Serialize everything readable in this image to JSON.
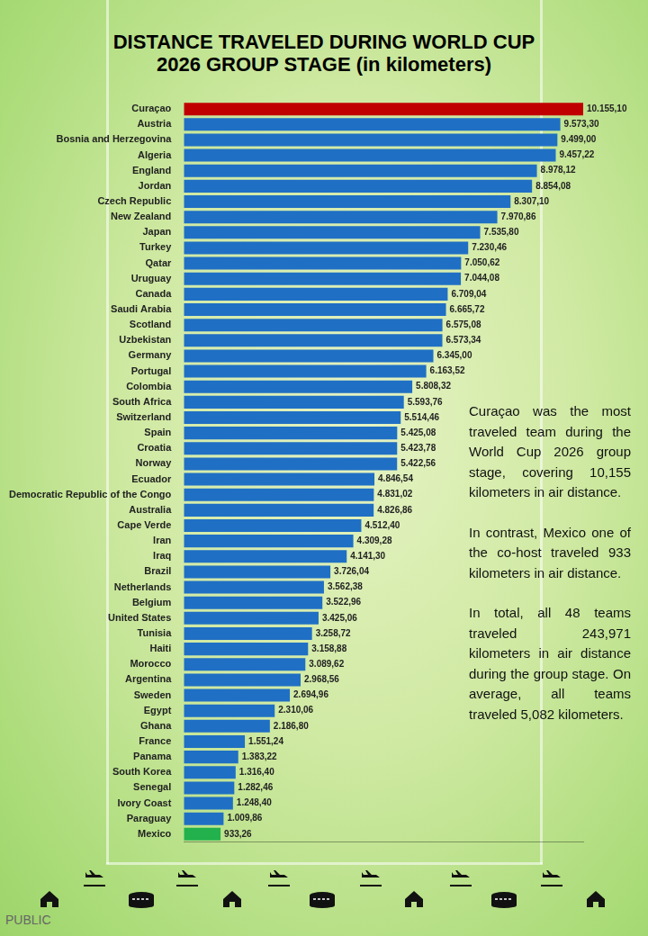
{
  "chart_data": {
    "type": "bar",
    "title": "DISTANCE TRAVELED DURING WORLD CUP 2026 GROUP STAGE (in kilometers)",
    "orientation": "horizontal",
    "categories": [
      "Curaçao",
      "Austria",
      "Bosnia and Herzegovina",
      "Algeria",
      "England",
      "Jordan",
      "Czech Republic",
      "New Zealand",
      "Japan",
      "Turkey",
      "Qatar",
      "Uruguay",
      "Canada",
      "Saudi Arabia",
      "Scotland",
      "Uzbekistan",
      "Germany",
      "Portugal",
      "Colombia",
      "South Africa",
      "Switzerland",
      "Spain",
      "Croatia",
      "Norway",
      "Ecuador",
      "Democratic Republic of the Congo",
      "Australia",
      "Cape Verde",
      "Iran",
      "Iraq",
      "Brazil",
      "Netherlands",
      "Belgium",
      "United States",
      "Tunisia",
      "Haiti",
      "Morocco",
      "Argentina",
      "Sweden",
      "Egypt",
      "Ghana",
      "France",
      "Panama",
      "South Korea",
      "Senegal",
      "Ivory Coast",
      "Paraguay",
      "Mexico"
    ],
    "values": [
      10155.1,
      9573.3,
      9499.0,
      9457.22,
      8978.12,
      8854.08,
      8307.1,
      7970.86,
      7535.8,
      7230.46,
      7050.62,
      7044.08,
      6709.04,
      6665.72,
      6575.08,
      6573.34,
      6345.0,
      6163.52,
      5808.32,
      5593.76,
      5514.46,
      5425.08,
      5423.78,
      5422.56,
      4846.54,
      4831.02,
      4826.86,
      4512.4,
      4309.28,
      4141.3,
      3726.04,
      3562.38,
      3522.96,
      3425.06,
      3258.72,
      3158.88,
      3089.62,
      2968.56,
      2694.96,
      2310.06,
      2186.8,
      1551.24,
      1383.22,
      1316.4,
      1282.46,
      1248.4,
      1009.86,
      933.26
    ],
    "value_labels": [
      "10.155,10",
      "9.573,30",
      "9.499,00",
      "9.457,22",
      "8.978,12",
      "8.854,08",
      "8.307,10",
      "7.970,86",
      "7.535,80",
      "7.230,46",
      "7.050,62",
      "7.044,08",
      "6.709,04",
      "6.665,72",
      "6.575,08",
      "6.573,34",
      "6.345,00",
      "6.163,52",
      "5.808,32",
      "5.593,76",
      "5.514,46",
      "5.425,08",
      "5.423,78",
      "5.422,56",
      "4.846,54",
      "4.831,02",
      "4.826,86",
      "4.512,40",
      "4.309,28",
      "4.141,30",
      "3.726,04",
      "3.562,38",
      "3.522,96",
      "3.425,06",
      "3.258,72",
      "3.158,88",
      "3.089,62",
      "2.968,56",
      "2.694,96",
      "2.310,06",
      "2.186,80",
      "1.551,24",
      "1.383,22",
      "1.316,40",
      "1.282,46",
      "1.248,40",
      "1.009,86",
      "933,26"
    ],
    "colors": [
      "#c00000",
      "#1f6fc4",
      "#1f6fc4",
      "#1f6fc4",
      "#1f6fc4",
      "#1f6fc4",
      "#1f6fc4",
      "#1f6fc4",
      "#1f6fc4",
      "#1f6fc4",
      "#1f6fc4",
      "#1f6fc4",
      "#1f6fc4",
      "#1f6fc4",
      "#1f6fc4",
      "#1f6fc4",
      "#1f6fc4",
      "#1f6fc4",
      "#1f6fc4",
      "#1f6fc4",
      "#1f6fc4",
      "#1f6fc4",
      "#1f6fc4",
      "#1f6fc4",
      "#1f6fc4",
      "#1f6fc4",
      "#1f6fc4",
      "#1f6fc4",
      "#1f6fc4",
      "#1f6fc4",
      "#1f6fc4",
      "#1f6fc4",
      "#1f6fc4",
      "#1f6fc4",
      "#1f6fc4",
      "#1f6fc4",
      "#1f6fc4",
      "#1f6fc4",
      "#1f6fc4",
      "#1f6fc4",
      "#1f6fc4",
      "#1f6fc4",
      "#1f6fc4",
      "#1f6fc4",
      "#1f6fc4",
      "#1f6fc4",
      "#1f6fc4",
      "#22b14c"
    ],
    "xlim": [
      0,
      10155.1
    ],
    "grid": false,
    "data_labels": true,
    "tick_labels": "y",
    "annotations": [
      "Curaçao was the most traveled team during the World Cup 2026 group stage, covering 10,155 kilometers in air distance.",
      "In contrast, Mexico one of the co-host traveled 933 kilometers in air distance.",
      "In total, all 48 teams traveled 243,971 kilometers in air distance during the group stage. On average, all teams traveled 5,082 kilometers."
    ],
    "credit": "PUBLIC"
  }
}
